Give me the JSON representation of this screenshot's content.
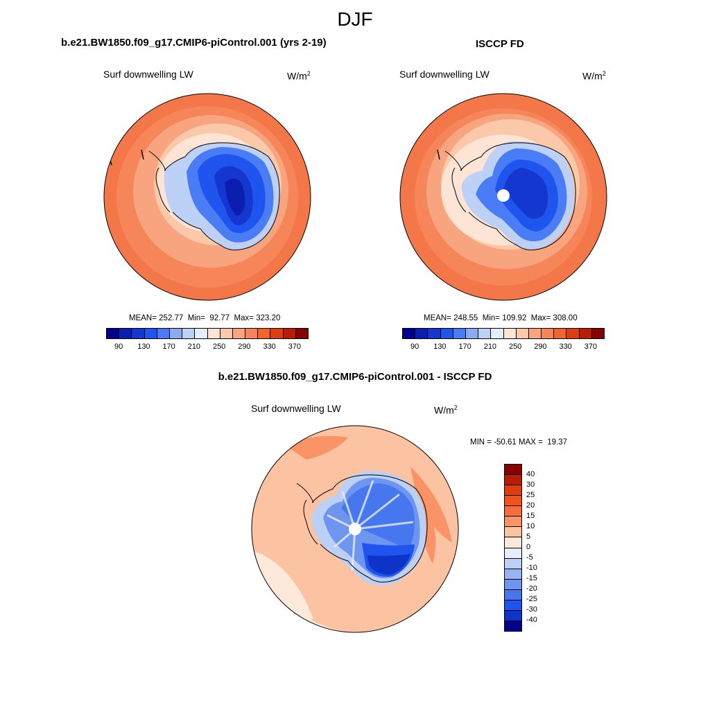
{
  "figure": {
    "title": "DJF"
  },
  "panels": [
    {
      "title": "b.e21.BW1850.f09_g17.CMIP6-piControl.001 (yrs 2-19)",
      "variable": "Surf downwelling LW",
      "units_base": "W/m",
      "units_exp": "2",
      "stats": {
        "mean_label": "MEAN=",
        "mean": "252.77",
        "min_label": "Min=",
        "min": "92.77",
        "max_label": "Max=",
        "max": "323.20"
      },
      "hemisphere": "south-polar-stereographic",
      "colorbar": {
        "orientation": "horizontal",
        "tick_labels": [
          "90",
          "130",
          "170",
          "210",
          "250",
          "290",
          "330",
          "370"
        ]
      }
    },
    {
      "title": "ISCCP FD",
      "variable": "Surf downwelling LW",
      "units_base": "W/m",
      "units_exp": "2",
      "stats": {
        "mean_label": "MEAN=",
        "mean": "248.55",
        "min_label": "Min=",
        "min": "109.92",
        "max_label": "Max=",
        "max": "308.00"
      },
      "hemisphere": "south-polar-stereographic",
      "colorbar": {
        "orientation": "horizontal",
        "tick_labels": [
          "90",
          "130",
          "170",
          "210",
          "250",
          "290",
          "330",
          "370"
        ]
      }
    },
    {
      "title": "b.e21.BW1850.f09_g17.CMIP6-piControl.001 - ISCCP FD",
      "variable": "Surf downwelling LW",
      "units_base": "W/m",
      "units_exp": "2",
      "stats": {
        "min_label": "MIN =",
        "min": "-50.61",
        "max_label": "MAX =",
        "max": "19.37"
      },
      "hemisphere": "south-polar-stereographic",
      "colorbar": {
        "orientation": "vertical",
        "tick_labels": [
          "40",
          "30",
          "25",
          "20",
          "15",
          "10",
          "5",
          "0",
          "-5",
          "-10",
          "-15",
          "-20",
          "-25",
          "-30",
          "-40"
        ]
      }
    }
  ],
  "colors": {
    "abs_scale": [
      "#00008a",
      "#0a1fb0",
      "#1437d0",
      "#1f55ee",
      "#4a7df5",
      "#8aaaf2",
      "#bdd0f5",
      "#e4eefa",
      "#fde4d4",
      "#fbc8a9",
      "#f8a47e",
      "#f6855a",
      "#f2642f",
      "#de3d10",
      "#b81c05",
      "#860000"
    ],
    "diff_scale": [
      "#860000",
      "#b81c05",
      "#de3d10",
      "#f4501c",
      "#f86d3c",
      "#fa9467",
      "#fbc3a2",
      "#fde9da",
      "#e6eefb",
      "#bcd0f5",
      "#94b4f3",
      "#6e96f1",
      "#4677ef",
      "#1f55ee",
      "#0d33c9",
      "#00008a"
    ],
    "coastline": "#000000"
  }
}
